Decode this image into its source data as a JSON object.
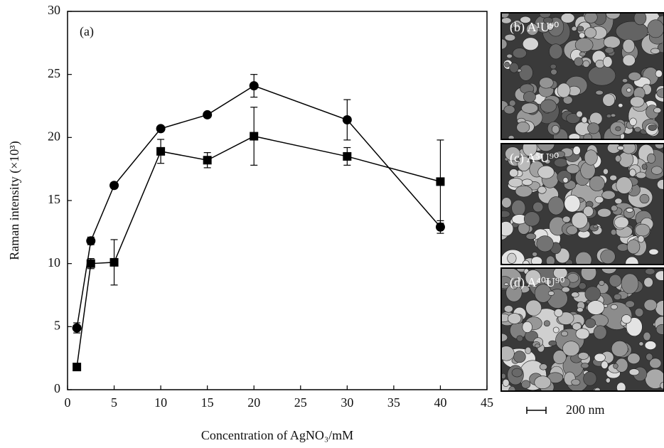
{
  "chart_data": {
    "type": "line",
    "x_label": "Concentration of AgNO₃/mM",
    "y_label": "Raman intensity (×10³)",
    "annotation": "(a)",
    "x": [
      1,
      2.5,
      5,
      10,
      15,
      20,
      30,
      40
    ],
    "series": [
      {
        "color": "#000000",
        "marker": "circle",
        "values": [
          4.9,
          11.8,
          16.2,
          20.7,
          21.8,
          24.1,
          21.4,
          12.9
        ],
        "errors": [
          0.4,
          0.3,
          0.2,
          0.2,
          0.2,
          0.9,
          1.6,
          0.5
        ]
      },
      {
        "color": "#000000",
        "marker": "square",
        "values": [
          1.8,
          10,
          10.1,
          18.9,
          18.2,
          20.1,
          18.5,
          16.5
        ],
        "errors": [
          0,
          0.4,
          1.8,
          0.95,
          0.6,
          2.3,
          0.7,
          3.3
        ]
      }
    ],
    "xlim": [
      0,
      45
    ],
    "xticks": [
      0,
      5,
      10,
      15,
      20,
      25,
      30,
      35,
      40,
      45
    ],
    "ylim": [
      0,
      30
    ],
    "yticks": [
      0,
      5,
      10,
      15,
      20,
      25,
      30
    ]
  },
  "images": {
    "panels": [
      {
        "label": "(b) A¹U⁹⁰"
      },
      {
        "label": "(c) A⁵U⁹⁰"
      },
      {
        "label": "(d) A⁴⁰U⁹⁰"
      }
    ],
    "scale_bar": "200 nm"
  }
}
